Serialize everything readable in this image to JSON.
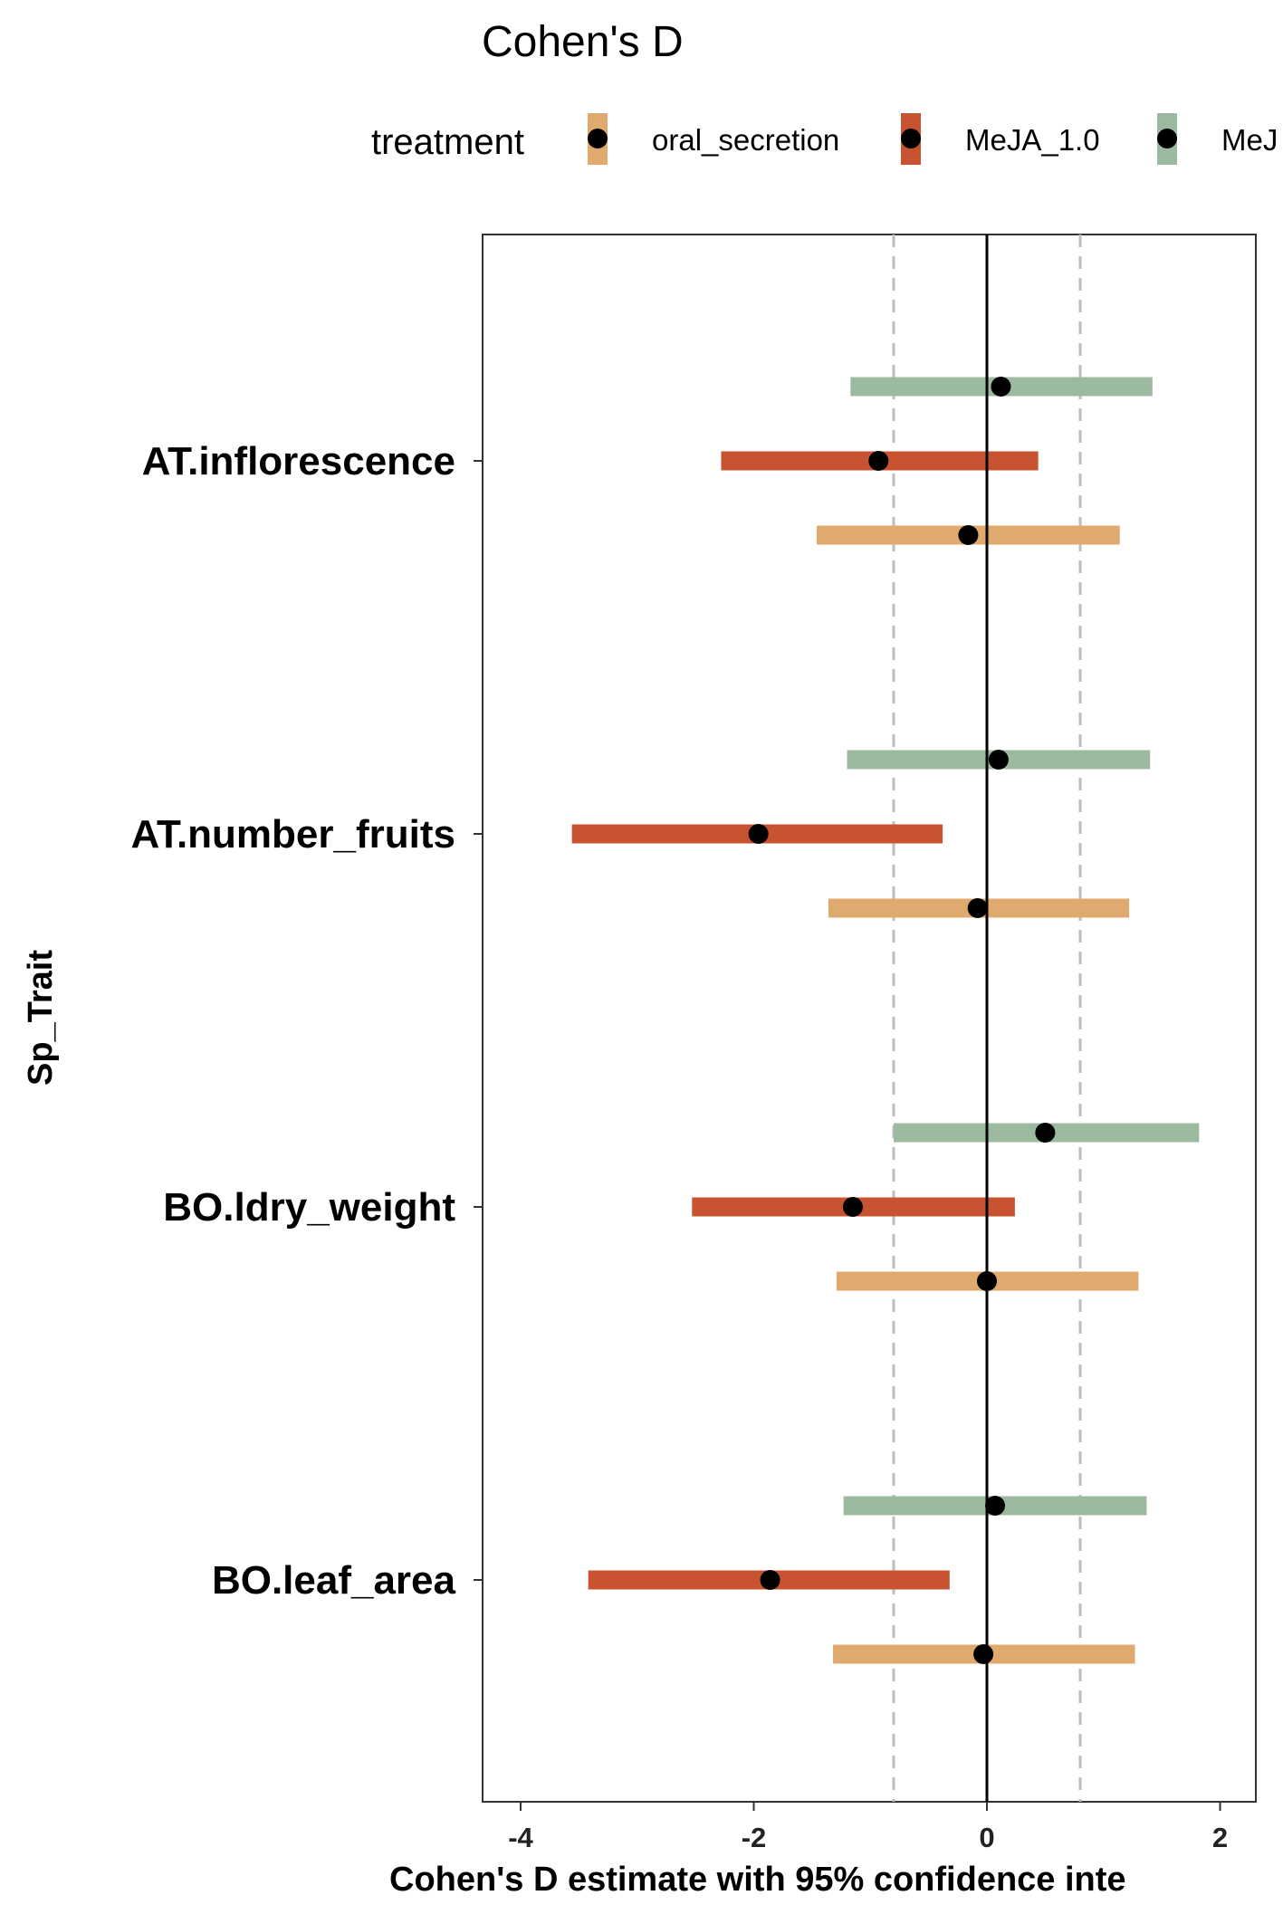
{
  "chart_data": {
    "type": "forest",
    "title": "Cohen's D",
    "xlabel": "Cohen's D estimate with 95% confidence inte",
    "ylabel": "Sp_Trait",
    "xlim": [
      -4.3,
      2.3
    ],
    "xticks": [
      "-4",
      "-2",
      "0",
      "2"
    ],
    "reference_lines": {
      "zero": 0,
      "dashed": [
        -0.8,
        0.8
      ]
    },
    "legend": {
      "title": "treatment",
      "position": "top",
      "entries": [
        {
          "label": "oral_secretion",
          "color": "#E0A96D"
        },
        {
          "label": "MeJA_1.0",
          "color": "#C85330"
        },
        {
          "label": "MeJ",
          "color": "#9CBAA0"
        }
      ]
    },
    "categories": [
      "AT.inflorescence",
      "AT.number_fruits",
      "BO.ldry_weight",
      "BO.leaf_area"
    ],
    "series": [
      {
        "color": "#9CBAA0",
        "estimates": [
          0.12,
          0.1,
          0.5,
          0.07
        ],
        "lower": [
          -1.17,
          -1.2,
          -0.8,
          -1.23
        ],
        "upper": [
          1.42,
          1.4,
          1.82,
          1.37
        ]
      },
      {
        "color": "#C85330",
        "estimates": [
          -0.93,
          -1.96,
          -1.15,
          -1.86
        ],
        "lower": [
          -2.28,
          -3.56,
          -2.53,
          -3.42
        ],
        "upper": [
          0.44,
          -0.38,
          0.24,
          -0.32
        ]
      },
      {
        "color": "#E0A96D",
        "estimates": [
          -0.16,
          -0.08,
          0.0,
          -0.03
        ],
        "lower": [
          -1.46,
          -1.36,
          -1.29,
          -1.32
        ],
        "upper": [
          1.14,
          1.22,
          1.3,
          1.27
        ]
      }
    ]
  }
}
